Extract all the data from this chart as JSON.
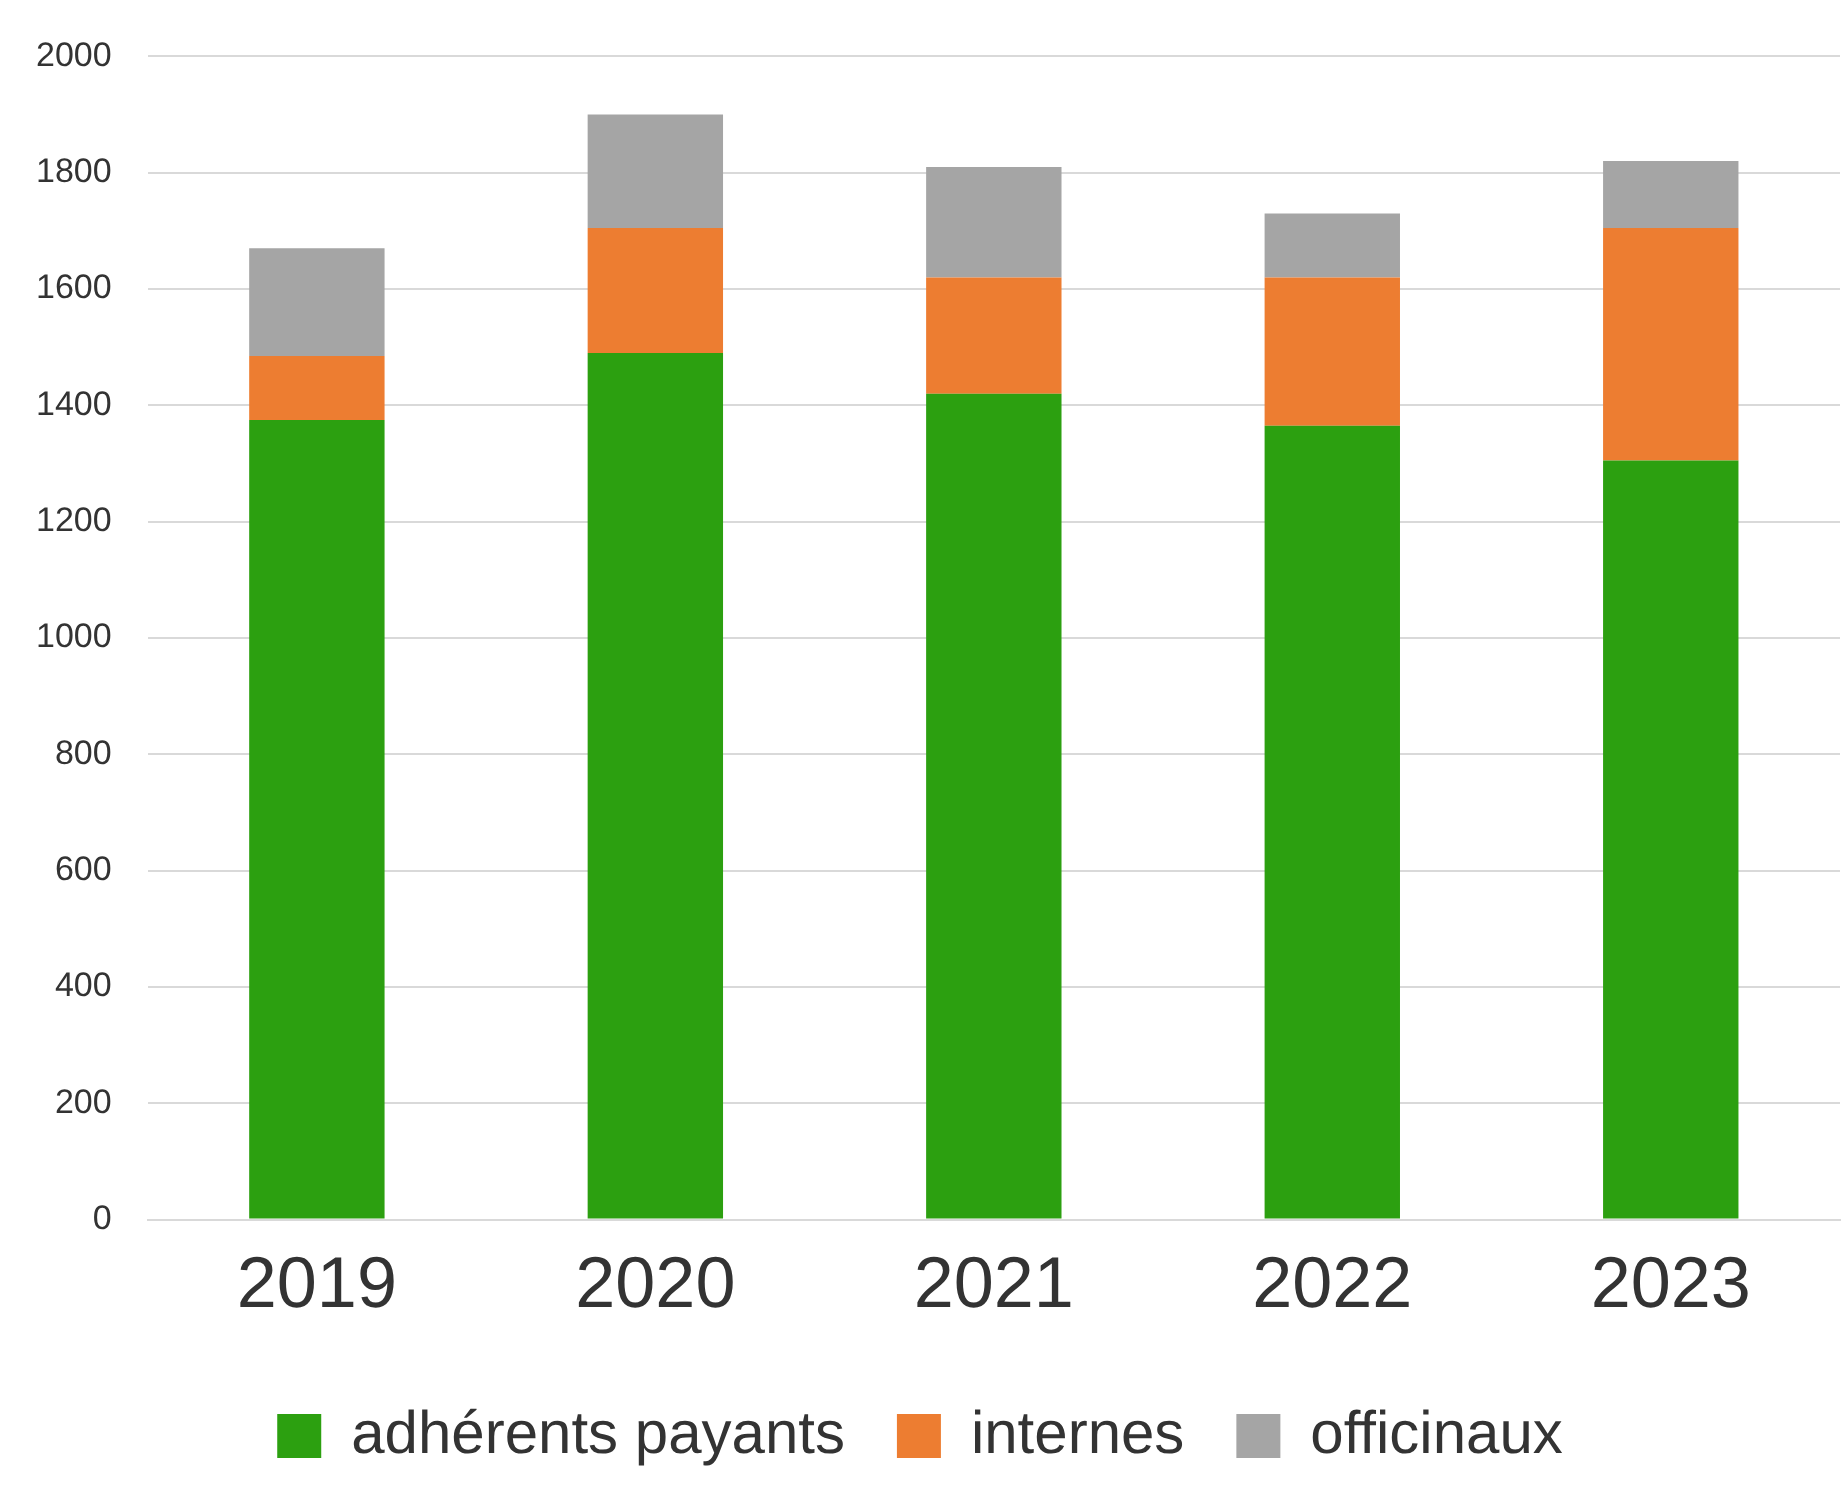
{
  "chart_data": {
    "type": "bar",
    "stacked": true,
    "categories": [
      "2019",
      "2020",
      "2021",
      "2022",
      "2023"
    ],
    "series": [
      {
        "name": "adhérents payants",
        "color": "#2ca010",
        "values": [
          1375,
          1490,
          1420,
          1365,
          1305
        ]
      },
      {
        "name": "internes",
        "color": "#ed7d31",
        "values": [
          110,
          215,
          200,
          255,
          400
        ]
      },
      {
        "name": "officinaux",
        "color": "#a5a5a5",
        "values": [
          185,
          195,
          190,
          110,
          115
        ]
      }
    ],
    "ylim": [
      0,
      2000
    ],
    "yticks": [
      0,
      200,
      400,
      600,
      800,
      1000,
      1200,
      1400,
      1600,
      1800,
      2000
    ],
    "grid": "y",
    "legend": "bottom"
  }
}
